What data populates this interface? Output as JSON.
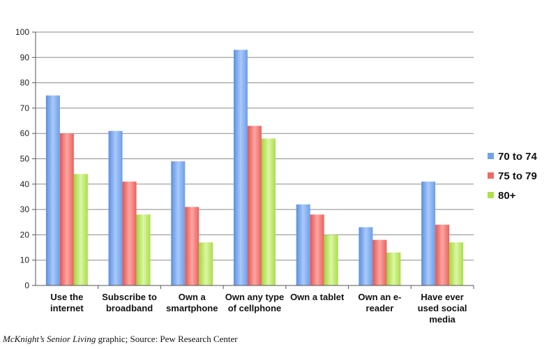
{
  "chart_data": {
    "type": "bar",
    "categories": [
      [
        "Use the",
        "internet"
      ],
      [
        "Subscribe to",
        "broadband"
      ],
      [
        "Own a",
        "smartphone"
      ],
      [
        "Own any type",
        "of cellphone"
      ],
      [
        "Own a tablet"
      ],
      [
        "Own an e-",
        "reader"
      ],
      [
        "Have ever",
        "used social",
        "media"
      ]
    ],
    "series": [
      {
        "name": "70 to 74",
        "values": [
          75,
          61,
          49,
          93,
          32,
          23,
          41
        ],
        "color": "#6fa3ee"
      },
      {
        "name": "75 to 79",
        "values": [
          60,
          41,
          31,
          63,
          28,
          18,
          24
        ],
        "color": "#ee6a66"
      },
      {
        "name": "80+",
        "values": [
          44,
          28,
          17,
          58,
          20,
          13,
          17
        ],
        "color": "#b0e04e"
      }
    ],
    "ylim": [
      0,
      100
    ],
    "yticks": [
      0,
      10,
      20,
      30,
      40,
      50,
      60,
      70,
      80,
      90,
      100
    ],
    "grid": true,
    "legend": "right"
  },
  "caption": {
    "italic": "McKnight’s Senior Living",
    "rest": " graphic; Source: Pew Research Center"
  }
}
